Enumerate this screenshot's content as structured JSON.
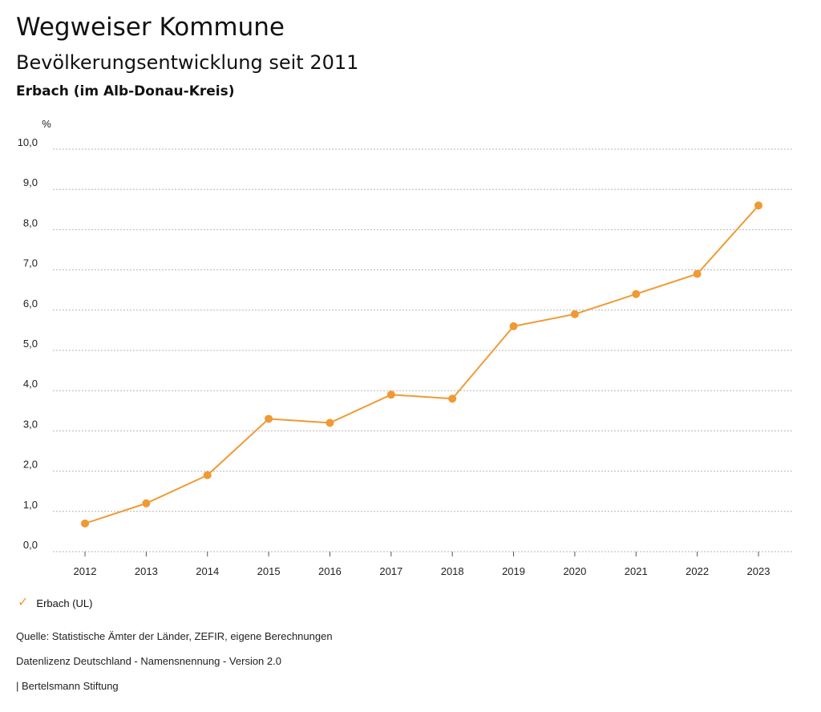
{
  "header": {
    "title": "Wegweiser Kommune",
    "subtitle": "Bevölkerungsentwicklung seit 2011",
    "region": "Erbach (im Alb-Donau-Kreis)"
  },
  "colors": {
    "series": "#ef9a33",
    "grid": "#b5b5b5"
  },
  "chart_data": {
    "type": "line",
    "title": "Bevölkerungsentwicklung seit 2011",
    "ylabel": "%",
    "xlabel": "",
    "ylim": [
      0,
      10
    ],
    "ytick_labels": [
      "0,0",
      "1,0",
      "2,0",
      "3,0",
      "4,0",
      "5,0",
      "6,0",
      "7,0",
      "8,0",
      "9,0",
      "10,0"
    ],
    "categories": [
      "2012",
      "2013",
      "2014",
      "2015",
      "2016",
      "2017",
      "2018",
      "2019",
      "2020",
      "2021",
      "2022",
      "2023"
    ],
    "series": [
      {
        "name": "Erbach (UL)",
        "values": [
          0.7,
          1.2,
          1.9,
          3.3,
          3.2,
          3.9,
          3.8,
          5.6,
          5.9,
          6.4,
          6.9,
          8.6
        ]
      }
    ],
    "grid": true,
    "legend": "bottom-left"
  },
  "legend": {
    "icon": "check-icon",
    "symbol": "✓",
    "label": "Erbach (UL)"
  },
  "footer": {
    "source": "Quelle: Statistische Ämter der Länder, ZEFIR, eigene Berechnungen",
    "license": "Datenlizenz Deutschland - Namensnennung - Version 2.0",
    "publisher": "| Bertelsmann Stiftung"
  }
}
